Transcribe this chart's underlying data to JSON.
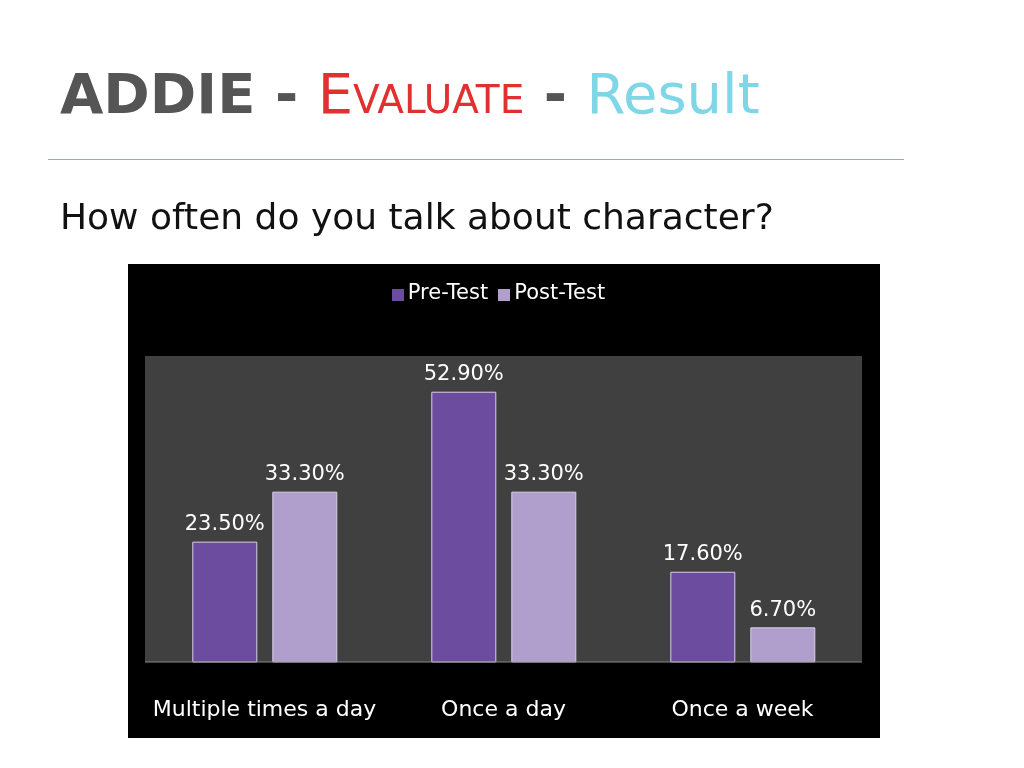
{
  "chart_data": {
    "type": "bar",
    "title": "ADDIE - Evaluate - Result",
    "subtitle": "How often do you talk about character?",
    "categories": [
      "Multiple times a day",
      "Once a day",
      "Once a week"
    ],
    "series": [
      {
        "name": "Pre-Test",
        "color": "#6b4c9e",
        "values": [
          23.5,
          52.9,
          17.6
        ],
        "value_labels": [
          "23.50%",
          "52.90%",
          "17.60%"
        ]
      },
      {
        "name": "Post-Test",
        "color": "#b09fcc",
        "values": [
          33.3,
          33.3,
          6.7
        ],
        "value_labels": [
          "33.30%",
          "33.30%",
          "6.70%"
        ]
      }
    ],
    "legend": "top"
  }
}
